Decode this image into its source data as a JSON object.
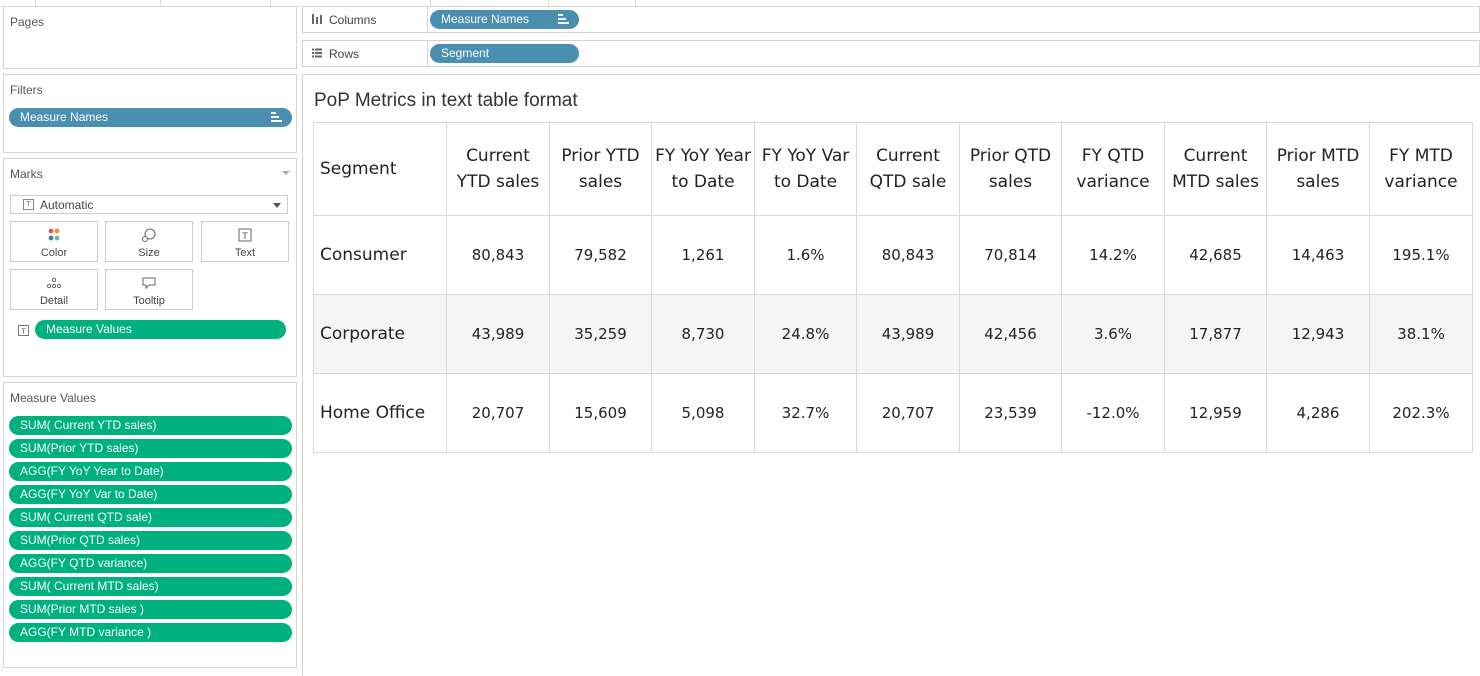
{
  "panels": {
    "pages": {
      "title": "Pages"
    },
    "filters": {
      "title": "Filters",
      "pill": "Measure Names"
    },
    "marks": {
      "title": "Marks",
      "mark_type": "Automatic",
      "buttons": [
        "Color",
        "Size",
        "Text",
        "Detail",
        "Tooltip"
      ],
      "pill": "Measure Values"
    },
    "measure_values": {
      "title": "Measure Values",
      "items": [
        "SUM( Current YTD sales)",
        "SUM(Prior YTD sales)",
        "AGG(FY YoY Year to Date)",
        "AGG(FY YoY Var to Date)",
        "SUM( Current QTD sale)",
        "SUM(Prior  QTD sales)",
        "AGG(FY QTD variance)",
        "SUM( Current MTD sales)",
        "SUM(Prior MTD sales )",
        "AGG(FY MTD variance )"
      ]
    }
  },
  "shelves": {
    "columns": {
      "label": "Columns",
      "pill": "Measure Names"
    },
    "rows": {
      "label": "Rows",
      "pill": "Segment"
    }
  },
  "view": {
    "title": "PoP Metrics in text table format",
    "table": {
      "headers": [
        "Segment",
        "Current YTD sales",
        "Prior YTD sales",
        "FY YoY Year to Date",
        "FY YoY Var to Date",
        "Current QTD sale",
        "Prior  QTD sales",
        "FY QTD variance",
        "Current MTD sales",
        "Prior MTD sales",
        "FY MTD variance"
      ],
      "rows": [
        [
          "Consumer",
          "80,843",
          "79,582",
          "1,261",
          "1.6%",
          "80,843",
          "70,814",
          "14.2%",
          "42,685",
          "14,463",
          "195.1%"
        ],
        [
          "Corporate",
          "43,989",
          "35,259",
          "8,730",
          "24.8%",
          "43,989",
          "42,456",
          "3.6%",
          "17,877",
          "12,943",
          "38.1%"
        ],
        [
          "Home Office",
          "20,707",
          "15,609",
          "5,098",
          "32.7%",
          "20,707",
          "23,539",
          "-12.0%",
          "12,959",
          "4,286",
          "202.3%"
        ]
      ]
    }
  },
  "colors": {
    "dimension_pill": "#4a8fb0",
    "measure_pill": "#00b180"
  }
}
